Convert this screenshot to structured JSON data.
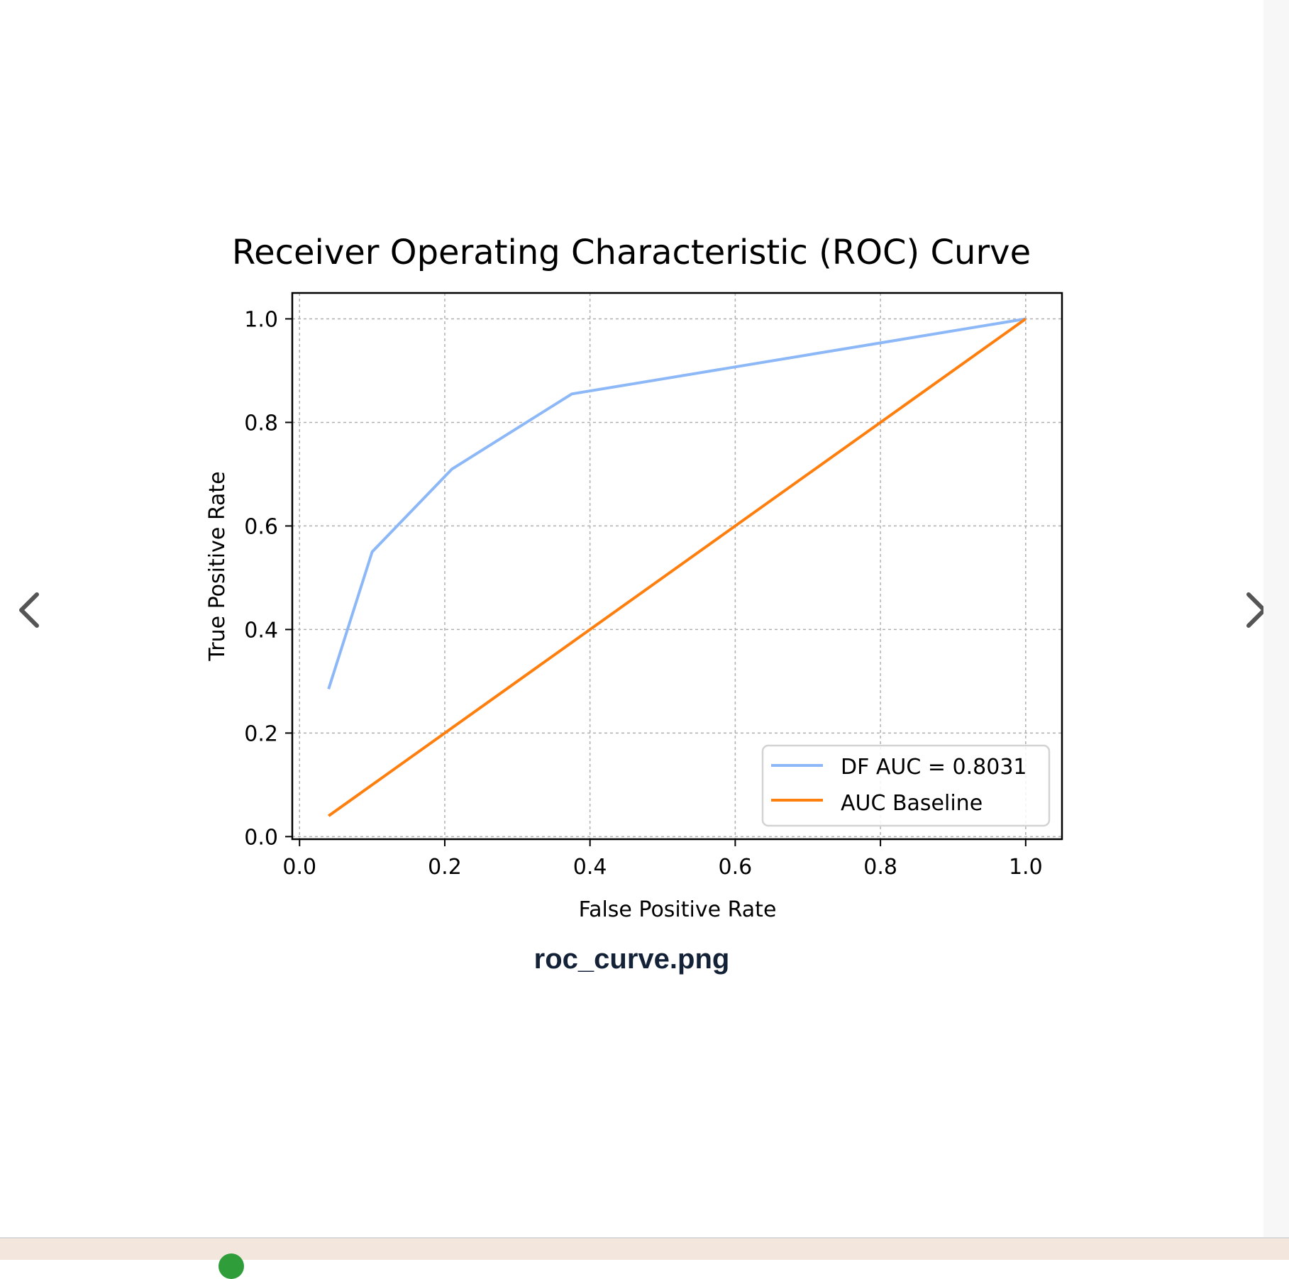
{
  "viewer": {
    "caption": "roc_curve.png",
    "prev_icon": "chevron-left-icon",
    "next_icon": "chevron-right-icon"
  },
  "colors": {
    "df_series": "#8db8f7",
    "baseline_series": "#ff7f0e",
    "grid": "#b0b0b0",
    "axis": "#000000"
  },
  "chart_data": {
    "type": "line",
    "title": "Receiver Operating Characteristic (ROC) Curve",
    "xlabel": "False Positive Rate",
    "ylabel": "True Positive Rate",
    "xlim": [
      -0.01,
      1.05
    ],
    "ylim": [
      -0.005,
      1.05
    ],
    "xticks": [
      0.0,
      0.2,
      0.4,
      0.6,
      0.8,
      1.0
    ],
    "xtick_labels": [
      "0.0",
      "0.2",
      "0.4",
      "0.6",
      "0.8",
      "1.0"
    ],
    "yticks": [
      0.0,
      0.2,
      0.4,
      0.6,
      0.8,
      1.0
    ],
    "ytick_labels": [
      "0.0",
      "0.2",
      "0.4",
      "0.6",
      "0.8",
      "1.0"
    ],
    "grid": true,
    "legend_position": "lower-right",
    "series": [
      {
        "name": "DF AUC = 0.8031",
        "color": "#8db8f7",
        "x": [
          0.04,
          0.1,
          0.21,
          0.375,
          1.0
        ],
        "y": [
          0.285,
          0.55,
          0.71,
          0.855,
          1.0
        ]
      },
      {
        "name": "AUC Baseline",
        "color": "#ff7f0e",
        "x": [
          0.04,
          1.0
        ],
        "y": [
          0.04,
          1.0
        ]
      }
    ]
  }
}
